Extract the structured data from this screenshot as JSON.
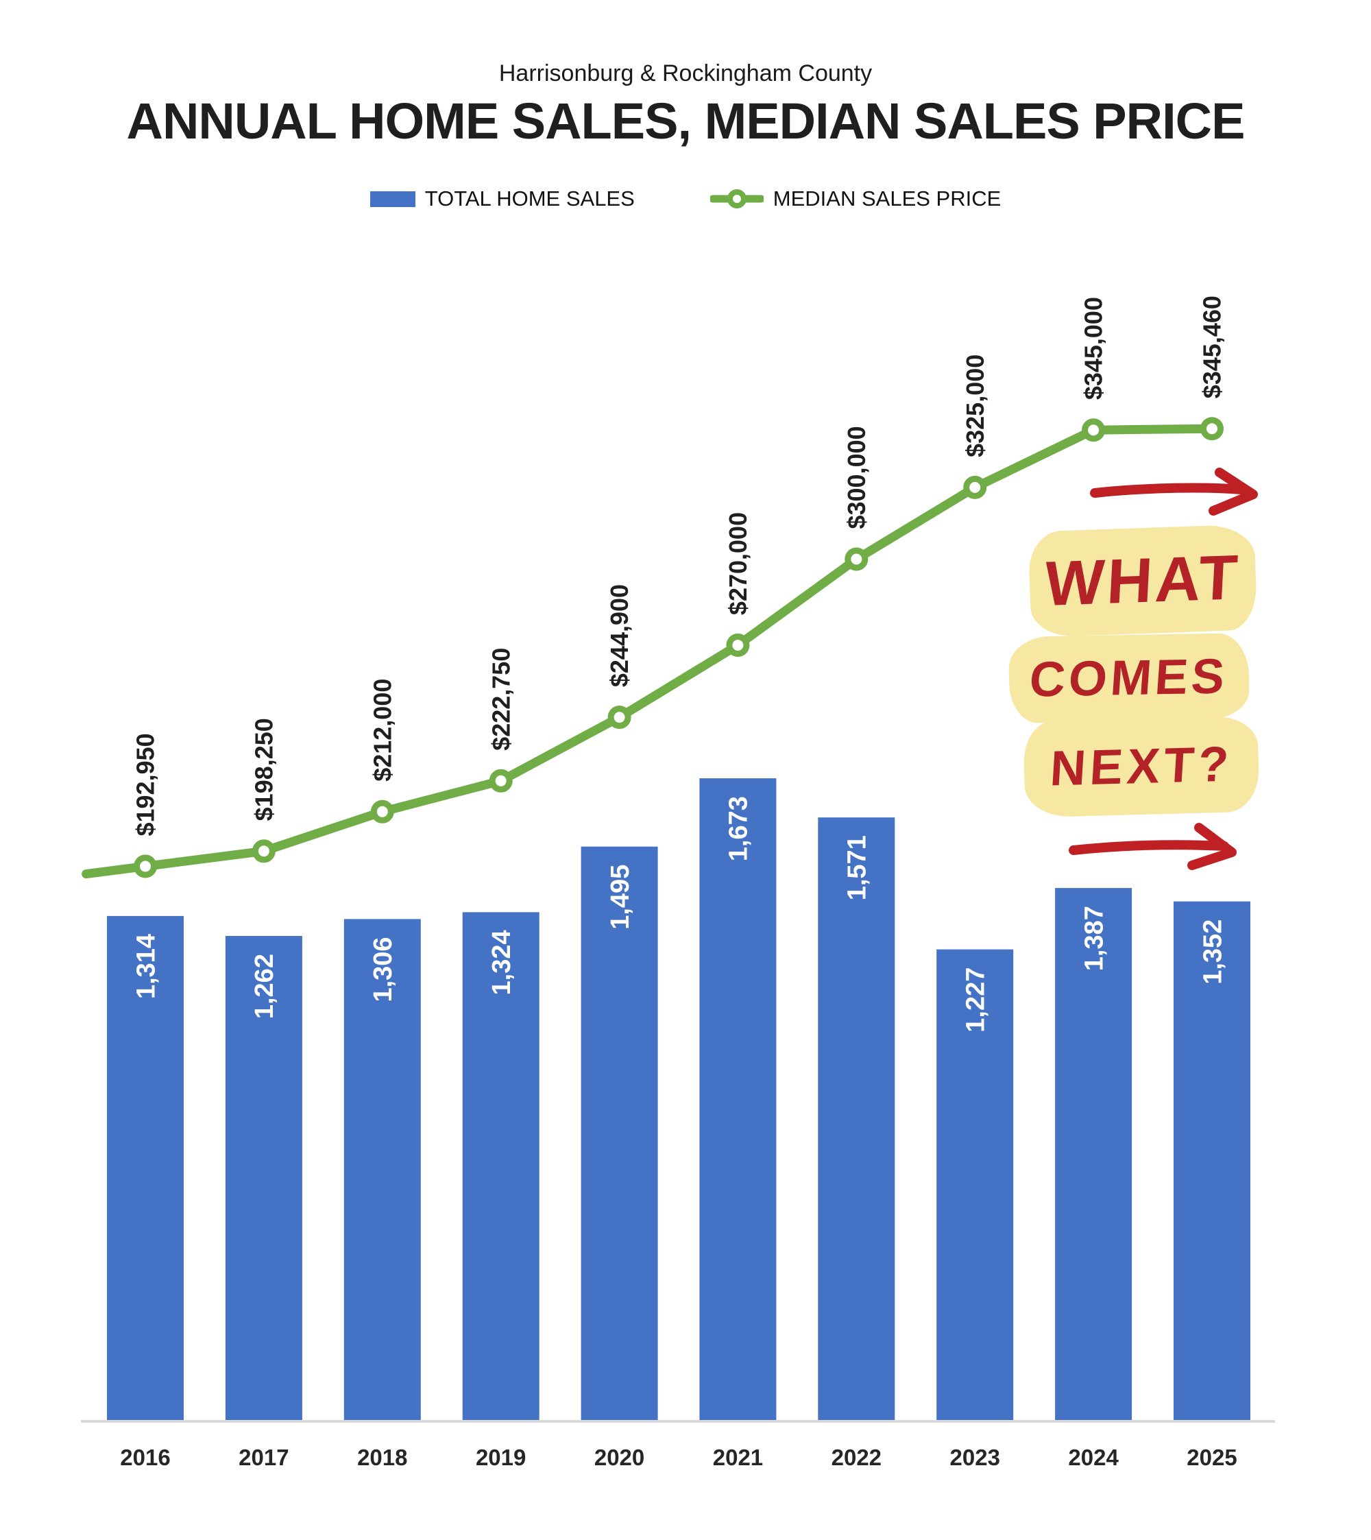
{
  "header": {
    "subtitle": "Harrisonburg & Rockingham County",
    "title": "ANNUAL HOME SALES, MEDIAN SALES PRICE"
  },
  "legend": [
    {
      "label": "TOTAL HOME SALES",
      "marker": "bar-swatch",
      "color": "#4472C4"
    },
    {
      "label": "MEDIAN SALES PRICE",
      "marker": "line-with-circle",
      "color": "#70AD47"
    }
  ],
  "chart_data": {
    "type": "bar",
    "subtype": "combo-bar-line",
    "title": "ANNUAL HOME SALES, MEDIAN SALES PRICE",
    "xlabel": "",
    "ylabel": "",
    "grid": "off",
    "value_axes_visible": false,
    "legend_position": "top",
    "categories": [
      "2016",
      "2017",
      "2018",
      "2019",
      "2020",
      "2021",
      "2022",
      "2023",
      "2024",
      "2025"
    ],
    "series": [
      {
        "name": "TOTAL HOME SALES",
        "type": "bar",
        "color": "#4472C4",
        "label_color": "#ffffff",
        "values": [
          1314,
          1262,
          1306,
          1324,
          1495,
          1673,
          1571,
          1227,
          1387,
          1352
        ],
        "labels": [
          "1,314",
          "1,262",
          "1,306",
          "1,324",
          "1,495",
          "1,673",
          "1,571",
          "1,227",
          "1,387",
          "1,352"
        ]
      },
      {
        "name": "MEDIAN SALES PRICE",
        "type": "line",
        "color": "#70AD47",
        "marker": "circle-open",
        "label_color": "#1f1f1f",
        "values": [
          192950,
          198250,
          212000,
          222750,
          244900,
          270000,
          300000,
          325000,
          345000,
          345460
        ],
        "labels": [
          "$192,950",
          "$198,250",
          "$212,000",
          "$222,750",
          "$244,900",
          "$270,000",
          "$300,000",
          "$325,000",
          "$345,000",
          "$345,460"
        ]
      }
    ],
    "bar_axis_min": 0,
    "line_axis_min": 0
  },
  "annotation": {
    "lines": [
      "WHAT",
      "COMES",
      "NEXT?"
    ],
    "text_color": "#B22226",
    "highlight_color": "#F6E8A3",
    "arrow_color": "#BE2024"
  },
  "colors": {
    "bar_blue": "#4472C4",
    "line_green": "#70AD47",
    "axis_gray": "#D9D9D9",
    "text_dark": "#1f1f1f",
    "background": "#ffffff"
  }
}
